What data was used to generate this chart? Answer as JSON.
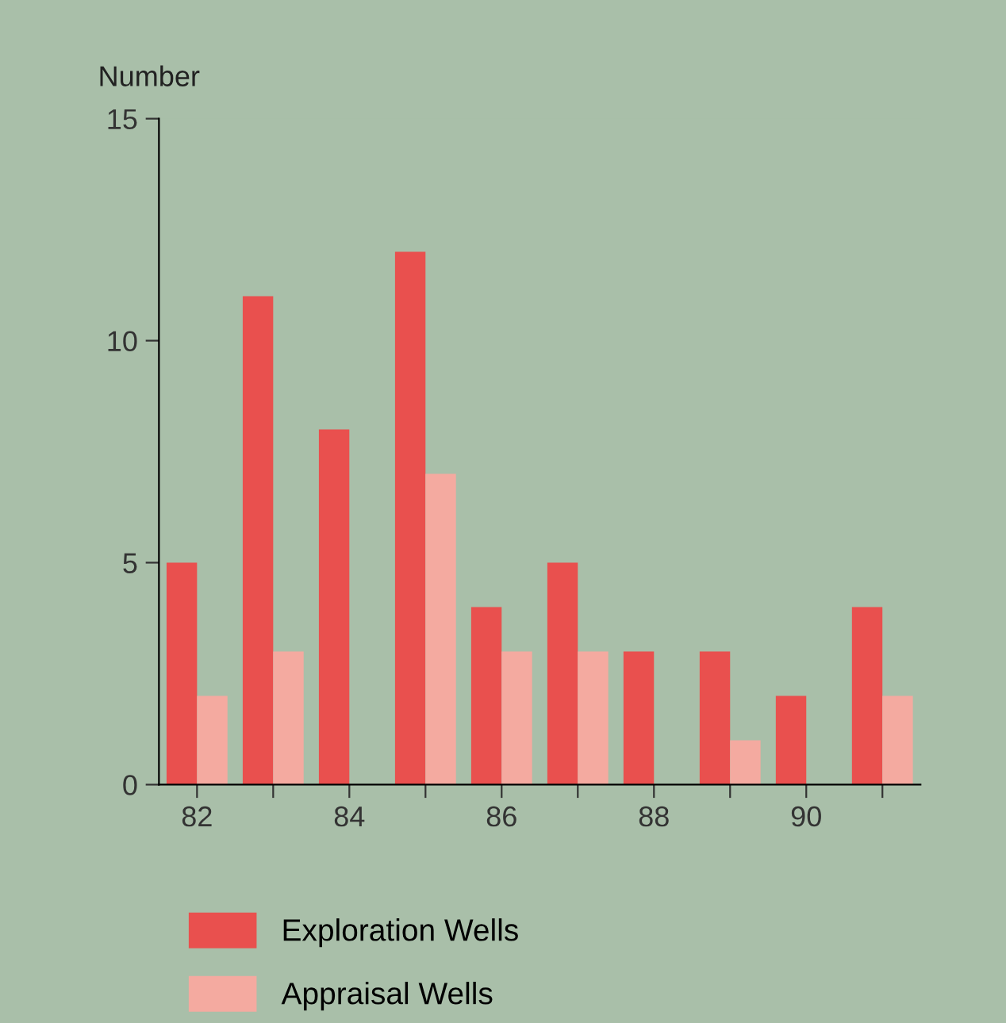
{
  "chart_data": {
    "type": "bar",
    "ylabel": "Number",
    "categories": [
      "82",
      null,
      "84",
      null,
      "86",
      null,
      "88",
      null,
      "90",
      null
    ],
    "series": [
      {
        "name": "Exploration Wells",
        "color": "#e9504e",
        "values": [
          5,
          11,
          8,
          12,
          4,
          5,
          3,
          3,
          2,
          4
        ]
      },
      {
        "name": "Appraisal Wells",
        "color": "#f4aaa0",
        "values": [
          2,
          3,
          null,
          7,
          3,
          3,
          null,
          1,
          null,
          2
        ]
      }
    ],
    "ylim": [
      0,
      15
    ],
    "yticks": [
      0,
      5,
      10,
      15
    ],
    "grid": false,
    "legend": "bottom"
  }
}
